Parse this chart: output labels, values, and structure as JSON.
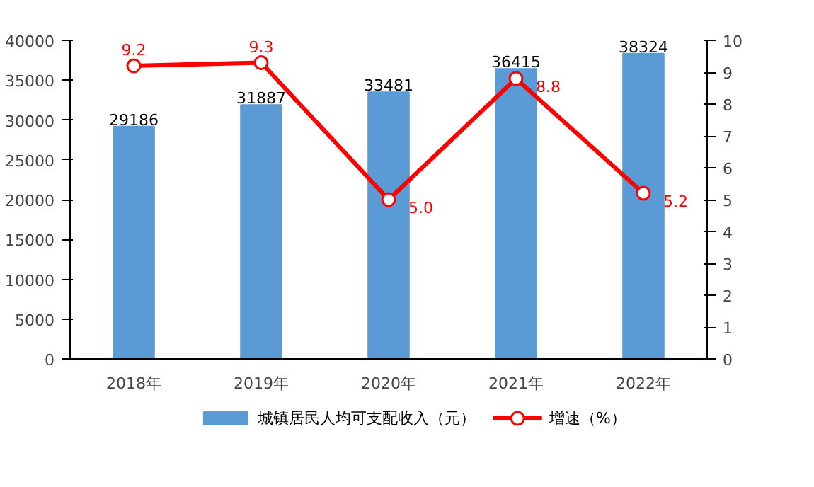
{
  "chart_data": {
    "type": "bar",
    "categories": [
      "2018年",
      "2019年",
      "2020年",
      "2021年",
      "2022年"
    ],
    "series": [
      {
        "name": "城镇居民人均可支配收入（元）",
        "color": "#5b9bd5",
        "values": [
          29186,
          31887,
          33481,
          36415,
          38324
        ]
      },
      {
        "name": "增速（%）",
        "color": "#ff0000",
        "type": "line",
        "axis": "y2",
        "marker": "circle",
        "values": [
          9.2,
          9.3,
          5.0,
          8.8,
          5.2
        ],
        "value_labels": [
          "9.2",
          "9.3",
          "5.0",
          "8.8",
          "5.2"
        ]
      }
    ],
    "data_labels": true,
    "ylim": [
      0,
      40000
    ],
    "yticks": [
      0,
      5000,
      10000,
      15000,
      20000,
      25000,
      30000,
      35000,
      40000
    ],
    "y2lim": [
      0,
      10
    ],
    "y2ticks": [
      0,
      1,
      2,
      3,
      4,
      5,
      6,
      7,
      8,
      9,
      10
    ],
    "grid": false,
    "legend": "bottom"
  }
}
